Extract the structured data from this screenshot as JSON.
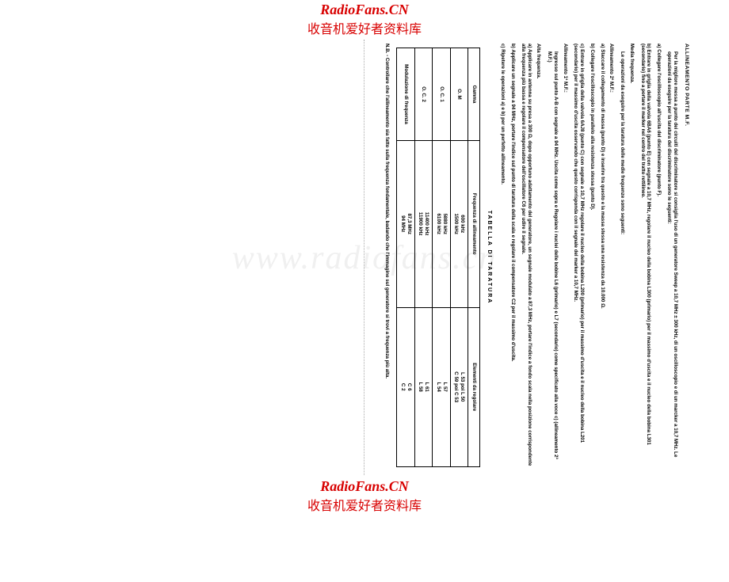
{
  "watermark": {
    "line1": "RadioFans.CN",
    "line2": "收音机爱好者资料库",
    "faint": "www.radiofans.cn"
  },
  "doc": {
    "title": "ALLINEAMENTO PARTE M.F.",
    "intro": "Per la migliore messa a punto dei circuiti del discriminatore si consiglia l'uso di un generatore Sweep a 10,7 MHz ± 300 kHz, di un oscilloscopio e di un marcker a 10,7 MHz. Le operazioni da eseguire per la taratura del discriminatore sono le seguenti:",
    "step_a": "a) Collegare l'oscilloscopio all'uscita del discriminatore (punto F).",
    "step_b": "b) Entrare in griglia della valvola 6BA6 (punto E) con segnale a 10,7 MHz, regolare il nucleo della bobina L300 (primario) per il massimo d'uscita e il nucleo della bobina L301 (secondario) fino a portare il marker nel centro del tratto rettilineo.",
    "media_freq_head": "Media frequenza.",
    "media_freq": "Le operazioni da eseguire per la taratura delle medie frequenze sono seguenti:",
    "allin2_head": "Allineamento 2ª M.F.:",
    "allin2_a": "a) Staccare il collegamento di massa (punto D) e inserire tra questo e la massa stessa una resistenza da 10.000 Ω.",
    "allin2_b": "b) Collegare l'oscilloscopio in parallelo alla resistenza stessa (punto D).",
    "allin2_c": "c) Entrare in griglia della valvola 6AJ8 (punto C) con segnale a 10,7 MHz regolare il nucleo della bobina L200 (primario) per il massimo d'uscita e il nucleo della bobina L201 (secondario) per il massimo d'uscita osservando che questo corrisponda con il segnale del marker a 10,7 MHz.",
    "allin1_head": "Allineamento 1ª M.F.:",
    "allin1_text": "Ingresso sul punto A-B con segnale a 94 MHz. Uscita come sopra e Regolare i nuclei delle bobine L6 (primario) e L7 (secondario) come specificato alla voce c) (allineamento 2ª M.F.)",
    "alta_head": "Alta frequenza.",
    "alta_a": "a) Applicare in antenna su presa a 300 Ω, dopo opportuno adattamento del generatore, un segnale modulato a 87,3 MHz, portare l'indice a fondo scala nella posizione corrispondente alla frequenza più bassa e regolare il compensatore dell'oscillatore C6 per udire il segnale.",
    "alta_b": "b) Applicare un segnale a 94 MHz, portare l'indice sul punto di taratura della scala e regolare il compensatore C2 per il massimo d'uscita.",
    "alta_c": "c) Ripetere le operazioni a) e b) per un perfetto allineamento.",
    "table_title": "TABELLA DI TARATURA",
    "headers": {
      "c1": "Gamma",
      "c2": "Frequenza di allineamento",
      "c3": "Elementi da regolare"
    },
    "rows": [
      {
        "c1": "O. M",
        "c2a": "600 kHz",
        "c2b": "1500 kHz",
        "c3a": "L 53  poi  L 50",
        "c3b": "C 59  poi  C 53"
      },
      {
        "c1": "O. C. 1",
        "c2a": "5880 kHz",
        "c2b": "6100 kHz",
        "c3a": "L 57",
        "c3b": "L 54"
      },
      {
        "c1": "O. C. 2",
        "c2a": "11400 kHz",
        "c2b": "11900 kHz",
        "c3a": "L 61",
        "c3b": "L 58"
      },
      {
        "c1": "Modulazione di frequenza",
        "c2a": "87,3 MHz",
        "c2b": "94   MHz",
        "c3a": "C 6",
        "c3b": "C 2"
      }
    ],
    "nb": "N.B. - Controllare che l'allineamento sia fatto sulla frequenza fondamentale, badando che l'immagine sul generatore si trovi a frequenza più alta."
  }
}
